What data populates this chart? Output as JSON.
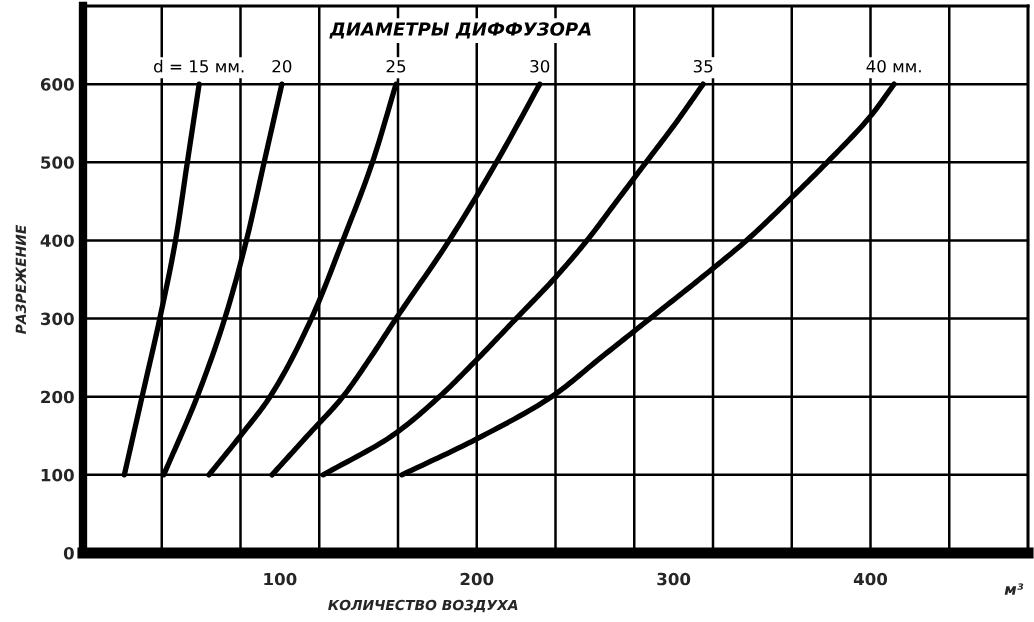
{
  "chart_data": {
    "type": "line",
    "title": "ДИАМЕТРЫ ДИФФУЗОРА",
    "xlabel": "КОЛИЧЕСТВО ВОЗДУХА",
    "ylabel": "РАЗРЕЖЕНИЕ",
    "annotations": [
      "м³"
    ],
    "xlim": [
      0,
      480
    ],
    "ylim": [
      0,
      700
    ],
    "xticks": [
      {
        "value": 40,
        "label": null
      },
      {
        "value": 80,
        "label": null
      },
      100,
      {
        "value": 120,
        "label": null
      },
      {
        "value": 160,
        "label": null
      },
      {
        "value": 200,
        "label": null
      },
      200,
      {
        "value": 240,
        "label": null
      },
      {
        "value": 280,
        "label": null
      },
      300,
      {
        "value": 320,
        "label": null
      },
      {
        "value": 360,
        "label": null
      },
      {
        "value": 400,
        "label": null
      },
      400,
      {
        "value": 440,
        "label": null
      }
    ],
    "yticks": [
      0,
      100,
      200,
      300,
      400,
      500,
      600
    ],
    "grid": true,
    "line_style": "solid",
    "series": [
      {
        "name": "d = 15 мм.",
        "color": "#000000",
        "x": [
          21,
          30,
          39,
          47,
          53,
          59
        ],
        "values": [
          100,
          200,
          300,
          400,
          500,
          600
        ]
      },
      {
        "name": "20",
        "color": "#000000",
        "x": [
          41,
          58,
          72,
          83,
          92,
          101
        ],
        "values": [
          100,
          200,
          300,
          400,
          500,
          600
        ]
      },
      {
        "name": "25",
        "color": "#000000",
        "x": [
          64,
          80,
          95,
          116,
          132,
          147,
          159
        ],
        "values": [
          100,
          150,
          200,
          300,
          400,
          500,
          600
        ]
      },
      {
        "name": "30",
        "color": "#000000",
        "x": [
          96,
          114,
          132,
          146,
          159,
          186,
          210,
          232
        ],
        "values": [
          100,
          150,
          200,
          250,
          300,
          400,
          500,
          600
        ]
      },
      {
        "name": "35",
        "color": "#000000",
        "x": [
          122,
          157,
          181,
          201,
          220,
          239,
          256,
          271,
          286,
          301,
          315
        ],
        "values": [
          100,
          150,
          200,
          250,
          300,
          350,
          400,
          450,
          500,
          550,
          600
        ]
      },
      {
        "name": "40 мм.",
        "color": "#000000",
        "x": [
          162,
          200,
          238,
          263,
          288,
          313,
          337,
          360,
          378,
          400,
          412
        ],
        "values": [
          100,
          146,
          200,
          250,
          300,
          350,
          400,
          455,
          500,
          559,
          600
        ]
      }
    ]
  }
}
